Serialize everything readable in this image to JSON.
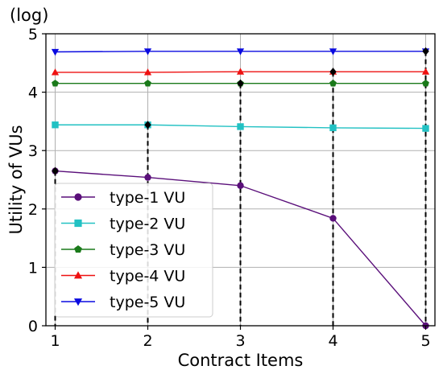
{
  "chart_data": {
    "type": "line",
    "x": [
      1,
      2,
      3,
      4,
      5
    ],
    "xlabel": "Contract Items",
    "ylabel": "Utility of VUs",
    "y_scale_note": "(log)",
    "xlim": [
      0.9,
      5.1
    ],
    "ylim": [
      0,
      5
    ],
    "xticks": [
      "1",
      "2",
      "3",
      "4",
      "5"
    ],
    "yticks": [
      "0",
      "1",
      "2",
      "3",
      "4",
      "5"
    ],
    "grid": true,
    "legend_position": "lower-left",
    "series": [
      {
        "name": "type-1 VU",
        "values": [
          2.65,
          2.54,
          2.4,
          1.84,
          0.0
        ],
        "color": "#5a0f7a",
        "marker": "circle"
      },
      {
        "name": "type-2 VU",
        "values": [
          3.44,
          3.44,
          3.41,
          3.39,
          3.38
        ],
        "color": "#22c1c3",
        "marker": "square"
      },
      {
        "name": "type-3 VU",
        "values": [
          4.15,
          4.15,
          4.15,
          4.15,
          4.15
        ],
        "color": "#1a7a1a",
        "marker": "pentagon"
      },
      {
        "name": "type-4 VU",
        "values": [
          4.34,
          4.34,
          4.35,
          4.35,
          4.35
        ],
        "color": "#ee1111",
        "marker": "triangle-up"
      },
      {
        "name": "type-5 VU",
        "values": [
          4.69,
          4.7,
          4.7,
          4.7,
          4.7
        ],
        "color": "#0a0ae0",
        "marker": "triangle-down"
      }
    ],
    "annotations": [
      {
        "x": 1,
        "y": 2.65,
        "label": "selected contract point",
        "color": "#000000"
      },
      {
        "x": 2,
        "y": 3.44,
        "label": "selected contract point",
        "color": "#000000"
      },
      {
        "x": 3,
        "y": 4.15,
        "label": "selected contract point",
        "color": "#000000"
      },
      {
        "x": 4,
        "y": 4.35,
        "label": "selected contract point",
        "color": "#000000"
      },
      {
        "x": 5,
        "y": 4.7,
        "label": "selected contract point",
        "color": "#000000"
      }
    ]
  }
}
